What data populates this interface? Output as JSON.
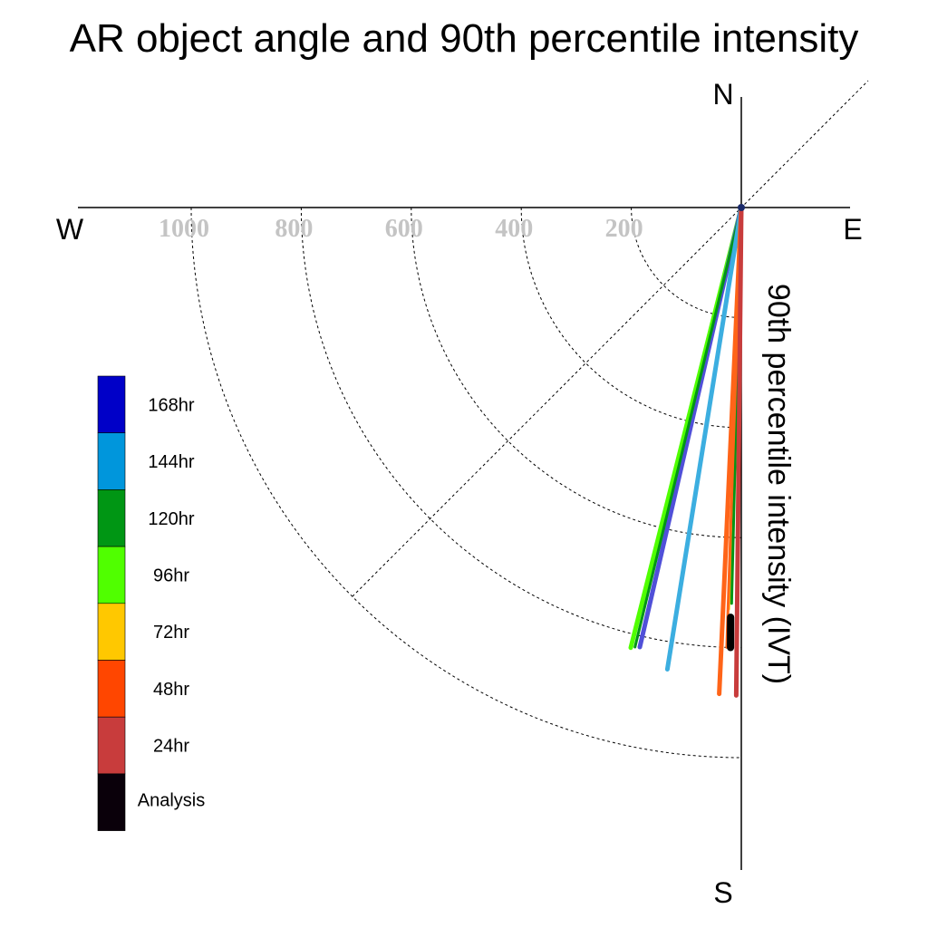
{
  "chart_data": {
    "type": "polar-line",
    "title": "AR object angle and 90th percentile intensity",
    "ylabel": "90th percentile intensity (IVT)",
    "compass": {
      "north": "N",
      "south": "S",
      "east": "E",
      "west": "W"
    },
    "radial_ticks": [
      {
        "value": 200,
        "label": "200"
      },
      {
        "value": 400,
        "label": "400"
      },
      {
        "value": 600,
        "label": "600"
      },
      {
        "value": 800,
        "label": "800"
      },
      {
        "value": 1000,
        "label": "1000"
      }
    ],
    "radial_max": 1000,
    "guide_angle_deg": 45,
    "legend": [
      {
        "name": "168hr",
        "color": "#0000c8"
      },
      {
        "name": "144hr",
        "color": "#0096dc"
      },
      {
        "name": "120hr",
        "color": "#009614"
      },
      {
        "name": "96hr",
        "color": "#50ff00"
      },
      {
        "name": "72hr",
        "color": "#ffc800"
      },
      {
        "name": "48hr",
        "color": "#ff4600"
      },
      {
        "name": "24hr",
        "color": "#c83c3c"
      },
      {
        "name": "Analysis",
        "color": "#0a000a"
      }
    ],
    "series": [
      {
        "name": "96hr",
        "color": "#50ff00",
        "width": 5,
        "values": [
          {
            "angle": 14.1,
            "intensity": 825
          }
        ]
      },
      {
        "name": "168hr",
        "color": "#5050d8",
        "width": 5,
        "values": [
          {
            "angle": 13.0,
            "intensity": 820
          }
        ]
      },
      {
        "name": "120hr",
        "color": "#009614",
        "width": 3,
        "values": [
          {
            "angle": 13.6,
            "intensity": 822
          }
        ]
      },
      {
        "name": "144hr",
        "color": "#3caee0",
        "width": 5,
        "values": [
          {
            "angle": 9.1,
            "intensity": 850
          }
        ]
      },
      {
        "name": "48hr",
        "color": "#ff6418",
        "width": 5,
        "values": [
          {
            "angle": 2.6,
            "intensity": 885
          }
        ]
      },
      {
        "name": "72hr",
        "color": "#ffc800",
        "width": 3,
        "values": [
          {
            "angle": 1.8,
            "intensity": 730
          }
        ]
      },
      {
        "name": "120hr",
        "color": "#009614",
        "width": 3,
        "values": [
          {
            "angle": 1.4,
            "intensity": 720
          }
        ]
      },
      {
        "name": "72hr",
        "color": "#ff6418",
        "width": 3,
        "values": [
          {
            "angle": 1.9,
            "intensity": 800
          }
        ]
      },
      {
        "name": "24hr",
        "color": "#c83c3c",
        "width": 5,
        "values": [
          {
            "angle": 0.6,
            "intensity": 887
          }
        ]
      },
      {
        "name": "Analysis",
        "color": "#000000",
        "width": 8,
        "values": [
          {
            "angle": 1.5,
            "intensity": 745
          },
          {
            "angle": 1.4,
            "intensity": 800
          }
        ]
      }
    ]
  }
}
